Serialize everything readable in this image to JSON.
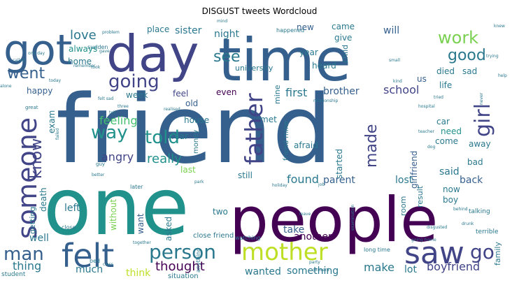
{
  "chart_data": {
    "type": "wordcloud",
    "title": "DISGUST tweets Wordcloud",
    "palette": {
      "dark_purple": "#440154",
      "purple": "#482475",
      "indigo": "#414487",
      "blue": "#355f8d",
      "steel": "#2a788e",
      "teal": "#21918c",
      "green": "#22a884",
      "emerald": "#44bf70",
      "lime": "#7ad151",
      "yellow": "#bddf26",
      "bright_yellow": "#fde725"
    },
    "words": [
      {
        "text": "friend",
        "color": "#355f8d",
        "weight": 100
      },
      {
        "text": "one",
        "color": "#21918c",
        "weight": 78
      },
      {
        "text": "time",
        "color": "#355f8d",
        "weight": 60
      },
      {
        "text": "people",
        "color": "#440154",
        "weight": 57
      },
      {
        "text": "day",
        "color": "#414487",
        "weight": 50
      },
      {
        "text": "got",
        "color": "#355f8d",
        "weight": 40
      },
      {
        "text": "someone",
        "color": "#414487",
        "weight": 30
      },
      {
        "text": "saw",
        "color": "#414487",
        "weight": 28
      },
      {
        "text": "felt",
        "color": "#355f8d",
        "weight": 26
      },
      {
        "text": "mother",
        "color": "#bddf26",
        "weight": 22
      },
      {
        "text": "father",
        "color": "#414487",
        "weight": 20
      },
      {
        "text": "person",
        "color": "#2a788e",
        "weight": 18
      },
      {
        "text": "going",
        "color": "#414487",
        "weight": 17
      },
      {
        "text": "work",
        "color": "#7ad151",
        "weight": 17
      },
      {
        "text": "girl",
        "color": "#414487",
        "weight": 17
      },
      {
        "text": "told",
        "color": "#21918c",
        "weight": 16
      },
      {
        "text": "man",
        "color": "#355f8d",
        "weight": 16
      },
      {
        "text": "see",
        "color": "#2a788e",
        "weight": 15
      },
      {
        "text": "went",
        "color": "#355f8d",
        "weight": 15
      },
      {
        "text": "way",
        "color": "#21918c",
        "weight": 15
      },
      {
        "text": "good",
        "color": "#2a788e",
        "weight": 14
      },
      {
        "text": "know",
        "color": "#414487",
        "weight": 14
      },
      {
        "text": "made",
        "color": "#414487",
        "weight": 14
      },
      {
        "text": "go",
        "color": "#414487",
        "weight": 14
      },
      {
        "text": "thought",
        "color": "#440154",
        "weight": 12
      },
      {
        "text": "love",
        "color": "#2a788e",
        "weight": 12
      },
      {
        "text": "really",
        "color": "#21918c",
        "weight": 12
      },
      {
        "text": "angry",
        "color": "#414487",
        "weight": 10
      },
      {
        "text": "first",
        "color": "#2a788e",
        "weight": 10
      },
      {
        "text": "feeling",
        "color": "#44bf70",
        "weight": 10
      },
      {
        "text": "make",
        "color": "#2a788e",
        "weight": 10
      },
      {
        "text": "thing",
        "color": "#2a788e",
        "weight": 10
      },
      {
        "text": "boyfriend",
        "color": "#414487",
        "weight": 10
      },
      {
        "text": "found",
        "color": "#2a788e",
        "weight": 9
      },
      {
        "text": "school",
        "color": "#414487",
        "weight": 9
      },
      {
        "text": "well",
        "color": "#2a788e",
        "weight": 9
      },
      {
        "text": "something",
        "color": "#2a788e",
        "weight": 9
      },
      {
        "text": "lot",
        "color": "#2a788e",
        "weight": 9
      },
      {
        "text": "will",
        "color": "#355f8d",
        "weight": 9
      },
      {
        "text": "much",
        "color": "#2a788e",
        "weight": 8
      },
      {
        "text": "sister",
        "color": "#2a788e",
        "weight": 8
      },
      {
        "text": "night",
        "color": "#2a788e",
        "weight": 8
      },
      {
        "text": "brother",
        "color": "#355f8d",
        "weight": 8
      },
      {
        "text": "left",
        "color": "#2a788e",
        "weight": 8
      },
      {
        "text": "parent",
        "color": "#355f8d",
        "weight": 8
      },
      {
        "text": "lost",
        "color": "#2a788e",
        "weight": 8
      },
      {
        "text": "back",
        "color": "#355f8d",
        "weight": 8
      },
      {
        "text": "said",
        "color": "#2a788e",
        "weight": 8
      },
      {
        "text": "wanted",
        "color": "#2a788e",
        "weight": 8
      },
      {
        "text": "another",
        "color": "#440154",
        "weight": 8
      },
      {
        "text": "take",
        "color": "#355f8d",
        "weight": 8
      },
      {
        "text": "think",
        "color": "#bddf26",
        "weight": 8
      },
      {
        "text": "home",
        "color": "#2a788e",
        "weight": 7
      },
      {
        "text": "happy",
        "color": "#355f8d",
        "weight": 7
      },
      {
        "text": "feel",
        "color": "#414487",
        "weight": 7
      },
      {
        "text": "old",
        "color": "#355f8d",
        "weight": 7
      },
      {
        "text": "house",
        "color": "#2a788e",
        "weight": 7
      },
      {
        "text": "car",
        "color": "#2a788e",
        "weight": 7
      },
      {
        "text": "come",
        "color": "#2a788e",
        "weight": 7
      },
      {
        "text": "need",
        "color": "#21918c",
        "weight": 7
      },
      {
        "text": "died",
        "color": "#2a788e",
        "weight": 7
      },
      {
        "text": "sad",
        "color": "#2a788e",
        "weight": 7
      },
      {
        "text": "life",
        "color": "#2a788e",
        "weight": 7
      },
      {
        "text": "us",
        "color": "#355f8d",
        "weight": 7
      },
      {
        "text": "new",
        "color": "#355f8d",
        "weight": 6
      },
      {
        "text": "came",
        "color": "#2a788e",
        "weight": 6
      },
      {
        "text": "give",
        "color": "#2a788e",
        "weight": 6
      },
      {
        "text": "year",
        "color": "#2a788e",
        "weight": 6
      },
      {
        "text": "heard",
        "color": "#2a788e",
        "weight": 6
      },
      {
        "text": "place",
        "color": "#2a788e",
        "weight": 6
      },
      {
        "text": "always",
        "color": "#21918c",
        "weight": 6
      },
      {
        "text": "even",
        "color": "#440154",
        "weight": 6
      },
      {
        "text": "week",
        "color": "#2a788e",
        "weight": 6
      },
      {
        "text": "afraid",
        "color": "#2a788e",
        "weight": 6
      },
      {
        "text": "girlfriend",
        "color": "#355f8d",
        "weight": 6
      },
      {
        "text": "still",
        "color": "#2a788e",
        "weight": 6
      },
      {
        "text": "last",
        "color": "#7ad151",
        "weight": 6
      },
      {
        "text": "want",
        "color": "#355f8d",
        "weight": 6
      },
      {
        "text": "two",
        "color": "#2a788e",
        "weight": 6
      },
      {
        "text": "asked",
        "color": "#2a788e",
        "weight": 6
      },
      {
        "text": "fear",
        "color": "#2a788e",
        "weight": 6
      },
      {
        "text": "met",
        "color": "#2a788e",
        "weight": 6
      },
      {
        "text": "now",
        "color": "#2a788e",
        "weight": 6
      },
      {
        "text": "boy",
        "color": "#2a788e",
        "weight": 6
      },
      {
        "text": "bad",
        "color": "#2a788e",
        "weight": 6
      },
      {
        "text": "away",
        "color": "#2a788e",
        "weight": 6
      },
      {
        "text": "exam",
        "color": "#2a788e",
        "weight": 6
      },
      {
        "text": "death",
        "color": "#2a788e",
        "weight": 6
      },
      {
        "text": "started",
        "color": "#2a788e",
        "weight": 6
      },
      {
        "text": "without",
        "color": "#7ad151",
        "weight": 6
      },
      {
        "text": "getting",
        "color": "#2a788e",
        "weight": 5
      },
      {
        "text": "family",
        "color": "#2a788e",
        "weight": 5
      },
      {
        "text": "result",
        "color": "#2a788e",
        "weight": 5
      },
      {
        "text": "room",
        "color": "#2a788e",
        "weight": 5
      },
      {
        "text": "child",
        "color": "#2a788e",
        "weight": 5
      },
      {
        "text": "university",
        "color": "#2a788e",
        "weight": 5
      },
      {
        "text": "mine",
        "color": "#2a788e",
        "weight": 5
      },
      {
        "text": "money",
        "color": "#2a788e",
        "weight": 5
      },
      {
        "text": "close friend",
        "color": "#2a788e",
        "weight": 5
      },
      {
        "text": "situation",
        "color": "#2a788e",
        "weight": 4
      },
      {
        "text": "bed",
        "color": "#2a788e",
        "weight": 4
      },
      {
        "text": "student",
        "color": "#2a788e",
        "weight": 4
      },
      {
        "text": "later",
        "color": "#2a788e",
        "weight": 4
      },
      {
        "text": "close",
        "color": "#2a788e",
        "weight": 4
      },
      {
        "text": "sudden",
        "color": "#2a788e",
        "weight": 4
      },
      {
        "text": "watching",
        "color": "#2a788e",
        "weight": 4
      },
      {
        "text": "terrible",
        "color": "#2a788e",
        "weight": 4
      },
      {
        "text": "talking",
        "color": "#2a788e",
        "weight": 4
      },
      {
        "text": "happened",
        "color": "#2a788e",
        "weight": 4
      },
      {
        "text": "anything",
        "color": "#2a788e",
        "weight": 4
      },
      {
        "text": "long time",
        "color": "#2a788e",
        "weight": 4
      },
      {
        "text": "friend mine",
        "color": "#2a788e",
        "weight": 4
      },
      {
        "text": "relationship",
        "color": "#2a788e",
        "weight": 3
      },
      {
        "text": "examination",
        "color": "#2a788e",
        "weight": 3
      },
      {
        "text": "hospital",
        "color": "#2a788e",
        "weight": 3
      },
      {
        "text": "felt sad",
        "color": "#2a788e",
        "weight": 3
      },
      {
        "text": "gave",
        "color": "#2a788e",
        "weight": 3
      },
      {
        "text": "took",
        "color": "#2a788e",
        "weight": 3
      },
      {
        "text": "called",
        "color": "#2a788e",
        "weight": 3
      },
      {
        "text": "one day",
        "color": "#2a788e",
        "weight": 3
      },
      {
        "text": "alone",
        "color": "#2a788e",
        "weight": 3
      },
      {
        "text": "today",
        "color": "#2a788e",
        "weight": 3
      },
      {
        "text": "great",
        "color": "#2a788e",
        "weight": 3
      },
      {
        "text": "trying",
        "color": "#2a788e",
        "weight": 3
      },
      {
        "text": "teacher",
        "color": "#2a788e",
        "weight": 3
      },
      {
        "text": "leave",
        "color": "#2a788e",
        "weight": 3
      },
      {
        "text": "together",
        "color": "#2a788e",
        "weight": 3
      },
      {
        "text": "holiday",
        "color": "#2a788e",
        "weight": 3
      },
      {
        "text": "knew",
        "color": "#2a788e",
        "weight": 2
      },
      {
        "text": "help",
        "color": "#2a788e",
        "weight": 2
      },
      {
        "text": "small",
        "color": "#2a788e",
        "weight": 2
      },
      {
        "text": "kind",
        "color": "#2a788e",
        "weight": 2
      },
      {
        "text": "park",
        "color": "#2a788e",
        "weight": 2
      },
      {
        "text": "guy",
        "color": "#2a788e",
        "weight": 2
      },
      {
        "text": "tell",
        "color": "#2a788e",
        "weight": 2
      },
      {
        "text": "tried",
        "color": "#2a788e",
        "weight": 2
      },
      {
        "text": "party",
        "color": "#2a788e",
        "weight": 2
      },
      {
        "text": "class",
        "color": "#2a788e",
        "weight": 2
      },
      {
        "text": "drunk",
        "color": "#2a788e",
        "weight": 2
      },
      {
        "text": "dog",
        "color": "#2a788e",
        "weight": 2
      },
      {
        "text": "job",
        "color": "#2a788e",
        "weight": 2
      },
      {
        "text": "mind",
        "color": "#2a788e",
        "weight": 2
      },
      {
        "text": "going home",
        "color": "#2a788e",
        "weight": 2
      },
      {
        "text": "disgusted",
        "color": "#2a788e",
        "weight": 2
      },
      {
        "text": "behind",
        "color": "#2a788e",
        "weight": 2
      },
      {
        "text": "present",
        "color": "#2a788e",
        "weight": 2
      },
      {
        "text": "better",
        "color": "#2a788e",
        "weight": 2
      },
      {
        "text": "realised",
        "color": "#2a788e",
        "weight": 2
      },
      {
        "text": "never",
        "color": "#2a788e",
        "weight": 2
      },
      {
        "text": "failed",
        "color": "#2a788e",
        "weight": 2
      },
      {
        "text": "three",
        "color": "#2a788e",
        "weight": 2
      },
      {
        "text": "problem",
        "color": "#2a788e",
        "weight": 2
      },
      {
        "text": "remember",
        "color": "#2a788e",
        "weight": 2
      }
    ]
  }
}
